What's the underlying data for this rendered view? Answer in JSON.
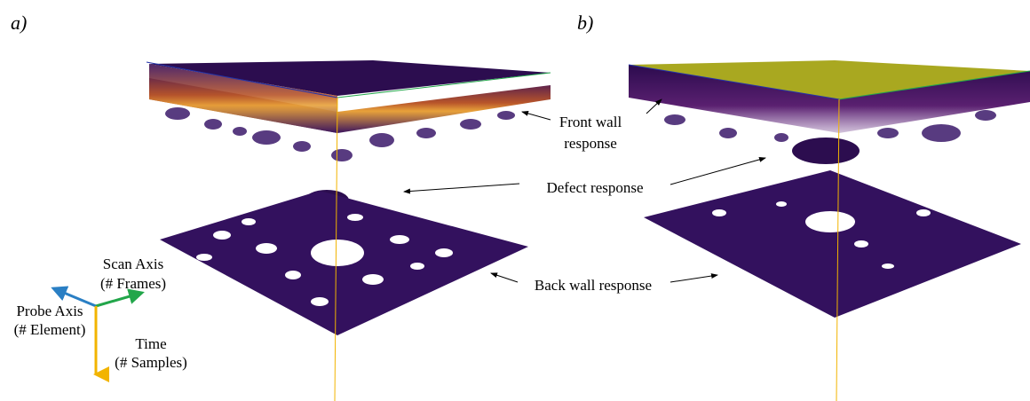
{
  "panels": [
    {
      "label": "a)"
    },
    {
      "label": "b)"
    }
  ],
  "annotations": {
    "front_wall": [
      "Front wall",
      "response"
    ],
    "defect": "Defect response",
    "back_wall": "Back wall response"
  },
  "axes_legend": {
    "scan": [
      "Scan Axis",
      "(# Frames)"
    ],
    "probe": [
      "Probe Axis",
      "(# Element)"
    ],
    "time": [
      "Time",
      "(# Samples)"
    ]
  }
}
